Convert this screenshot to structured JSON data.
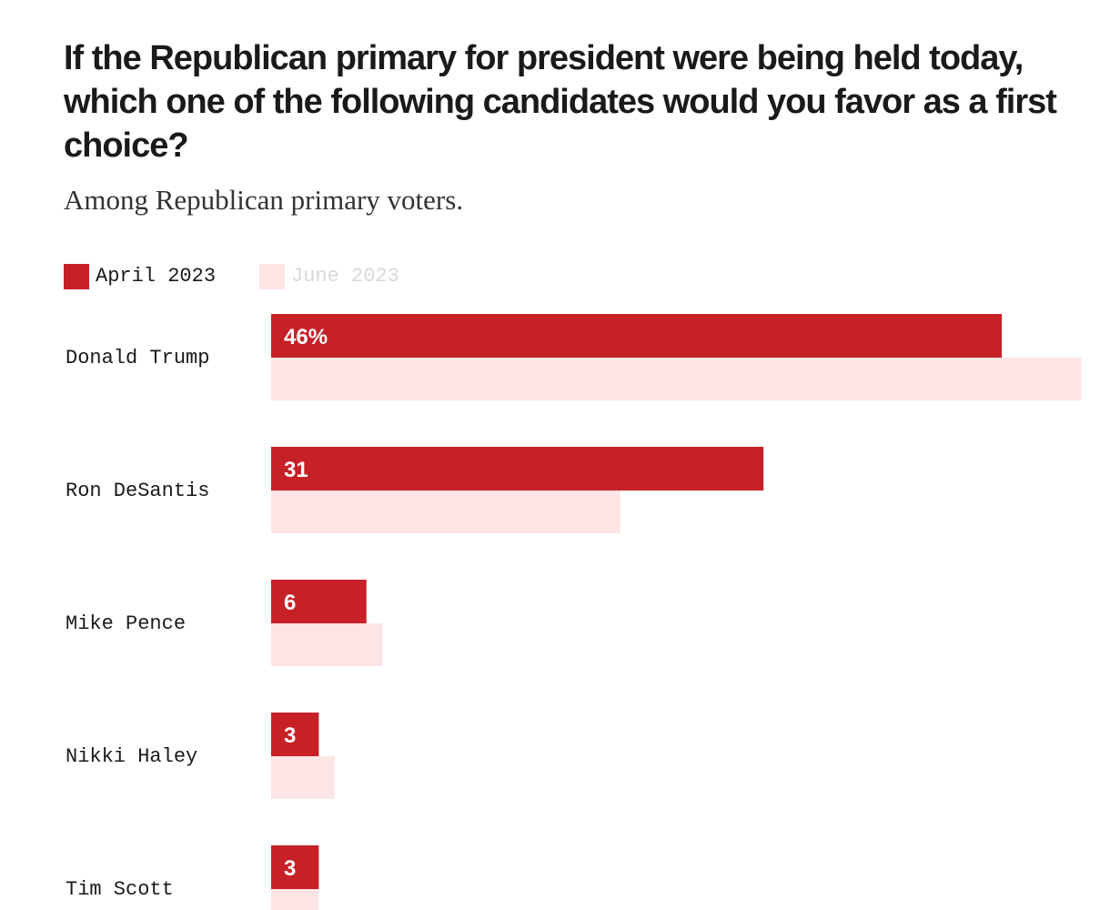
{
  "chart_data": {
    "type": "bar",
    "orientation": "horizontal",
    "title": "If the Republican primary for president were being held today, which one of the following candidates would you favor as a first choice?",
    "subtitle": "Among Republican primary voters.",
    "categories": [
      "Donald Trump",
      "Ron DeSantis",
      "Mike Pence",
      "Nikki Haley",
      "Tim Scott"
    ],
    "series": [
      {
        "name": "April 2023",
        "color": "#c62127",
        "values": [
          46,
          31,
          6,
          3,
          3
        ],
        "labels": [
          "46%",
          "31",
          "6",
          "3",
          "3"
        ]
      },
      {
        "name": "June 2023",
        "color": "#fde5e5",
        "values": [
          51,
          22,
          7,
          4,
          3
        ]
      }
    ],
    "legend_position": "top-left",
    "grid": false
  }
}
